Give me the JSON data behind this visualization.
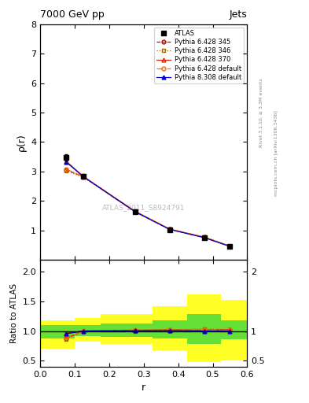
{
  "title_left": "7000 GeV pp",
  "title_right": "Jets",
  "xlabel": "r",
  "ylabel_main": "ρ(r)",
  "ylabel_ratio": "Ratio to ATLAS",
  "watermark": "ATLAS_2011_S8924791",
  "right_label_top": "Rivet 3.1.10, ≥ 3.3M events",
  "right_label_bot": "mcplots.cern.ch [arXiv:1306.3436]",
  "x": [
    0.075,
    0.125,
    0.275,
    0.375,
    0.475,
    0.55
  ],
  "atlas_y": [
    3.48,
    2.82,
    1.62,
    1.02,
    0.75,
    0.45
  ],
  "atlas_yerr": [
    0.1,
    0.08,
    0.05,
    0.03,
    0.02,
    0.015
  ],
  "p6_345_y": [
    3.05,
    2.82,
    1.63,
    1.03,
    0.76,
    0.46
  ],
  "p6_346_y": [
    3.02,
    2.8,
    1.62,
    1.04,
    0.775,
    0.462
  ],
  "p6_370_y": [
    3.35,
    2.83,
    1.64,
    1.04,
    0.76,
    0.46
  ],
  "p6_default_y": [
    3.08,
    2.82,
    1.65,
    1.04,
    0.762,
    0.458
  ],
  "p8_default_y": [
    3.32,
    2.82,
    1.63,
    1.03,
    0.75,
    0.45
  ],
  "atlas_color": "#000000",
  "p6_345_color": "#cc0000",
  "p6_346_color": "#996600",
  "p6_370_color": "#dd2200",
  "p6_default_color": "#ff6600",
  "p8_default_color": "#0000cc",
  "bin_edges": [
    0.0,
    0.1,
    0.175,
    0.325,
    0.425,
    0.525,
    0.6
  ],
  "band_yellow_low": [
    0.7,
    0.82,
    0.78,
    0.68,
    0.48,
    0.5
  ],
  "band_yellow_high": [
    1.18,
    1.22,
    1.28,
    1.42,
    1.62,
    1.52
  ],
  "band_green_low": [
    0.88,
    0.92,
    0.9,
    0.88,
    0.78,
    0.86
  ],
  "band_green_high": [
    1.1,
    1.1,
    1.13,
    1.18,
    1.28,
    1.18
  ],
  "main_ylim": [
    0,
    8
  ],
  "main_yticks": [
    1,
    2,
    3,
    4,
    5,
    6,
    7,
    8
  ],
  "ratio_ylim": [
    0.4,
    2.2
  ],
  "ratio_yticks": [
    0.5,
    1.0,
    1.5,
    2.0
  ],
  "xlim": [
    0.0,
    0.6
  ]
}
